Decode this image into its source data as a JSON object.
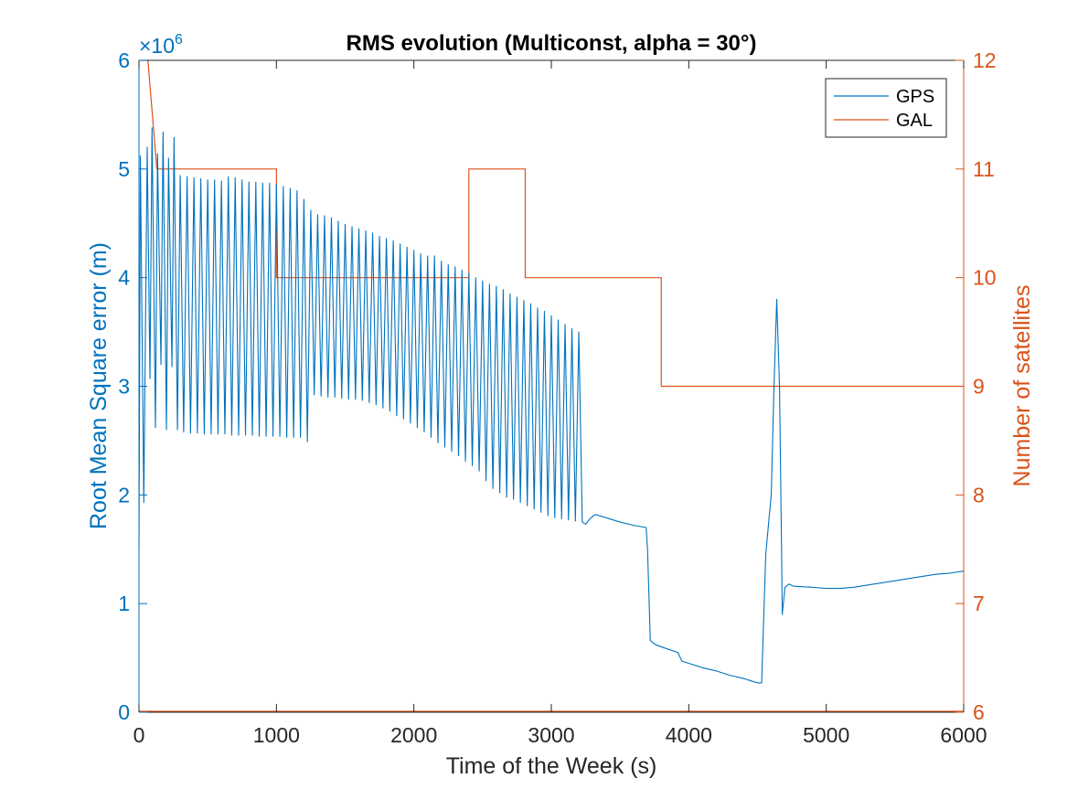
{
  "chart_data": {
    "type": "line",
    "title": "RMS evolution (Multiconst, alpha = 30°)",
    "xlabel": "Time of the Week (s)",
    "ylabel_left": "Root Mean Square error (m)",
    "ylabel_right": "Number of satellites",
    "left_exponent_base": "×10",
    "left_exponent_power": "6",
    "xlim": [
      0,
      6000
    ],
    "ylim_left": [
      0,
      6
    ],
    "ylim_right": [
      6,
      12
    ],
    "x_ticks": [
      "0",
      "1000",
      "2000",
      "3000",
      "4000",
      "5000",
      "6000"
    ],
    "y_left_ticks": [
      "0",
      "1",
      "2",
      "3",
      "4",
      "5",
      "6"
    ],
    "y_right_ticks": [
      "6",
      "7",
      "8",
      "9",
      "10",
      "11",
      "12"
    ],
    "legend_placement": "top-right",
    "colors": {
      "left_axis": "#0072BD",
      "right_axis": "#D95319"
    },
    "series": [
      {
        "name": "GPS",
        "axis": "left",
        "color": "#0072BD",
        "peaks": [
          [
            10,
            5.12
          ],
          [
            60,
            5.2
          ],
          [
            95,
            5.38
          ],
          [
            135,
            5.14
          ],
          [
            175,
            5.34
          ],
          [
            215,
            5.1
          ],
          [
            255,
            5.29
          ],
          [
            300,
            4.94
          ],
          [
            350,
            4.93
          ],
          [
            400,
            4.92
          ],
          [
            450,
            4.91
          ],
          [
            500,
            4.9
          ],
          [
            550,
            4.9
          ],
          [
            600,
            4.89
          ],
          [
            650,
            4.93
          ],
          [
            700,
            4.92
          ],
          [
            750,
            4.9
          ],
          [
            800,
            4.88
          ],
          [
            850,
            4.88
          ],
          [
            900,
            4.87
          ],
          [
            950,
            4.87
          ],
          [
            1000,
            4.86
          ],
          [
            1050,
            4.84
          ],
          [
            1100,
            4.82
          ],
          [
            1150,
            4.8
          ],
          [
            1200,
            4.72
          ],
          [
            1250,
            4.62
          ],
          [
            1300,
            4.58
          ],
          [
            1350,
            4.57
          ],
          [
            1400,
            4.55
          ],
          [
            1450,
            4.52
          ],
          [
            1500,
            4.49
          ],
          [
            1550,
            4.47
          ],
          [
            1600,
            4.45
          ],
          [
            1650,
            4.43
          ],
          [
            1700,
            4.41
          ],
          [
            1750,
            4.38
          ],
          [
            1800,
            4.36
          ],
          [
            1850,
            4.34
          ],
          [
            1900,
            4.31
          ],
          [
            1950,
            4.28
          ],
          [
            2000,
            4.25
          ],
          [
            2050,
            4.22
          ],
          [
            2100,
            4.2
          ],
          [
            2150,
            4.2
          ],
          [
            2200,
            4.15
          ],
          [
            2250,
            4.12
          ],
          [
            2300,
            4.1
          ],
          [
            2350,
            4.07
          ],
          [
            2400,
            4.04
          ],
          [
            2450,
            4.0
          ],
          [
            2500,
            3.97
          ],
          [
            2550,
            3.94
          ],
          [
            2600,
            3.92
          ],
          [
            2650,
            3.89
          ],
          [
            2700,
            3.85
          ],
          [
            2750,
            3.82
          ],
          [
            2800,
            3.79
          ],
          [
            2850,
            3.76
          ],
          [
            2900,
            3.72
          ],
          [
            2950,
            3.69
          ],
          [
            3000,
            3.65
          ],
          [
            3050,
            3.61
          ],
          [
            3100,
            3.57
          ],
          [
            3150,
            3.53
          ],
          [
            3200,
            3.5
          ]
        ],
        "troughs": [
          [
            35,
            1.93
          ],
          [
            80,
            3.07
          ],
          [
            120,
            2.62
          ],
          [
            160,
            3.2
          ],
          [
            200,
            2.6
          ],
          [
            240,
            3.18
          ],
          [
            280,
            2.6
          ],
          [
            325,
            2.58
          ],
          [
            375,
            2.57
          ],
          [
            425,
            2.57
          ],
          [
            475,
            2.56
          ],
          [
            525,
            2.56
          ],
          [
            575,
            2.56
          ],
          [
            625,
            2.56
          ],
          [
            675,
            2.55
          ],
          [
            725,
            2.55
          ],
          [
            775,
            2.55
          ],
          [
            825,
            2.55
          ],
          [
            875,
            2.54
          ],
          [
            925,
            2.54
          ],
          [
            975,
            2.54
          ],
          [
            1025,
            2.54
          ],
          [
            1075,
            2.53
          ],
          [
            1125,
            2.53
          ],
          [
            1175,
            2.53
          ],
          [
            1225,
            2.49
          ],
          [
            1275,
            2.92
          ],
          [
            1325,
            2.91
          ],
          [
            1375,
            2.9
          ],
          [
            1425,
            2.9
          ],
          [
            1475,
            2.89
          ],
          [
            1525,
            2.88
          ],
          [
            1575,
            2.88
          ],
          [
            1625,
            2.87
          ],
          [
            1675,
            2.85
          ],
          [
            1725,
            2.83
          ],
          [
            1775,
            2.8
          ],
          [
            1825,
            2.77
          ],
          [
            1875,
            2.73
          ],
          [
            1925,
            2.7
          ],
          [
            1975,
            2.66
          ],
          [
            2025,
            2.62
          ],
          [
            2075,
            2.58
          ],
          [
            2125,
            2.53
          ],
          [
            2175,
            2.48
          ],
          [
            2225,
            2.44
          ],
          [
            2275,
            2.4
          ],
          [
            2325,
            2.36
          ],
          [
            2375,
            2.31
          ],
          [
            2425,
            2.27
          ],
          [
            2475,
            2.22
          ],
          [
            2525,
            2.13
          ],
          [
            2575,
            2.06
          ],
          [
            2625,
            2.02
          ],
          [
            2675,
            1.98
          ],
          [
            2725,
            1.96
          ],
          [
            2775,
            1.93
          ],
          [
            2825,
            1.9
          ],
          [
            2875,
            1.87
          ],
          [
            2925,
            1.84
          ],
          [
            2975,
            1.81
          ],
          [
            3025,
            1.79
          ],
          [
            3075,
            1.78
          ],
          [
            3125,
            1.77
          ],
          [
            3175,
            1.76
          ],
          [
            3225,
            1.75
          ]
        ],
        "tail": [
          [
            3250,
            1.73
          ],
          [
            3280,
            1.78
          ],
          [
            3320,
            1.82
          ],
          [
            3400,
            1.79
          ],
          [
            3500,
            1.75
          ],
          [
            3600,
            1.72
          ],
          [
            3690,
            1.7
          ],
          [
            3700,
            1.5
          ],
          [
            3720,
            0.66
          ],
          [
            3760,
            0.62
          ],
          [
            3850,
            0.58
          ],
          [
            3920,
            0.55
          ],
          [
            3950,
            0.47
          ],
          [
            4000,
            0.45
          ],
          [
            4100,
            0.41
          ],
          [
            4200,
            0.38
          ],
          [
            4300,
            0.34
          ],
          [
            4400,
            0.31
          ],
          [
            4450,
            0.29
          ],
          [
            4500,
            0.27
          ],
          [
            4530,
            0.27
          ],
          [
            4560,
            1.45
          ],
          [
            4585,
            1.8
          ],
          [
            4600,
            2.0
          ],
          [
            4620,
            3.0
          ],
          [
            4640,
            3.8
          ],
          [
            4660,
            3.0
          ],
          [
            4675,
            1.5
          ],
          [
            4680,
            0.9
          ],
          [
            4700,
            1.15
          ],
          [
            4730,
            1.18
          ],
          [
            4760,
            1.16
          ],
          [
            4900,
            1.15
          ],
          [
            5000,
            1.14
          ],
          [
            5100,
            1.14
          ],
          [
            5200,
            1.15
          ],
          [
            5300,
            1.17
          ],
          [
            5400,
            1.19
          ],
          [
            5500,
            1.21
          ],
          [
            5600,
            1.23
          ],
          [
            5700,
            1.25
          ],
          [
            5800,
            1.27
          ],
          [
            5900,
            1.28
          ],
          [
            6000,
            1.3
          ]
        ]
      },
      {
        "name": "GAL",
        "axis": "right",
        "color": "#D95319",
        "points": [
          [
            0,
            12
          ],
          [
            65,
            12
          ],
          [
            130,
            11
          ],
          [
            1000,
            11
          ],
          [
            1000,
            10
          ],
          [
            2400,
            10
          ],
          [
            2400,
            11
          ],
          [
            2810,
            11
          ],
          [
            2810,
            10
          ],
          [
            3800,
            10
          ],
          [
            3800,
            9
          ],
          [
            6000,
            9
          ]
        ],
        "zero_baseline": true
      }
    ]
  }
}
